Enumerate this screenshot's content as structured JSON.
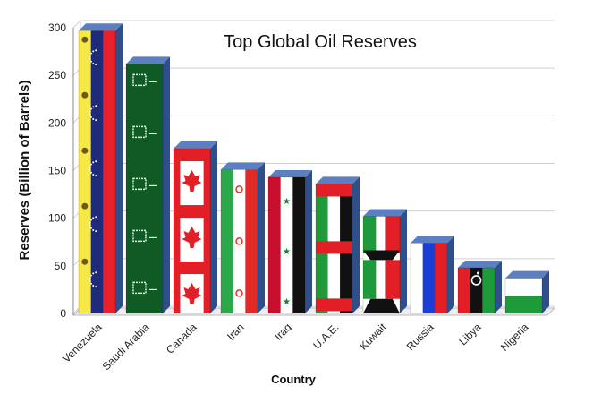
{
  "chart_data": {
    "type": "bar",
    "title": "Top Global Oil Reserves",
    "xlabel": "Country",
    "ylabel": "Reserves (Billion of Barrels)",
    "ylim": [
      0,
      300
    ],
    "yticks": [
      0,
      50,
      100,
      150,
      200,
      250,
      300
    ],
    "grid": true,
    "categories": [
      "Venezuela",
      "Saudi Arabia",
      "Canada",
      "Iran",
      "Iraq",
      "U.A.E.",
      "Kuwait",
      "Russia",
      "Libya",
      "Nigeria"
    ],
    "values": [
      297,
      262,
      173,
      151,
      143,
      136,
      102,
      74,
      48,
      37
    ],
    "bar_fill": "country-flag",
    "colors": {
      "bar_top": "#5b7fbf",
      "bar_side": "#2f4f8a",
      "grid": "#d0d0d0",
      "wall": "#ffffff"
    }
  }
}
